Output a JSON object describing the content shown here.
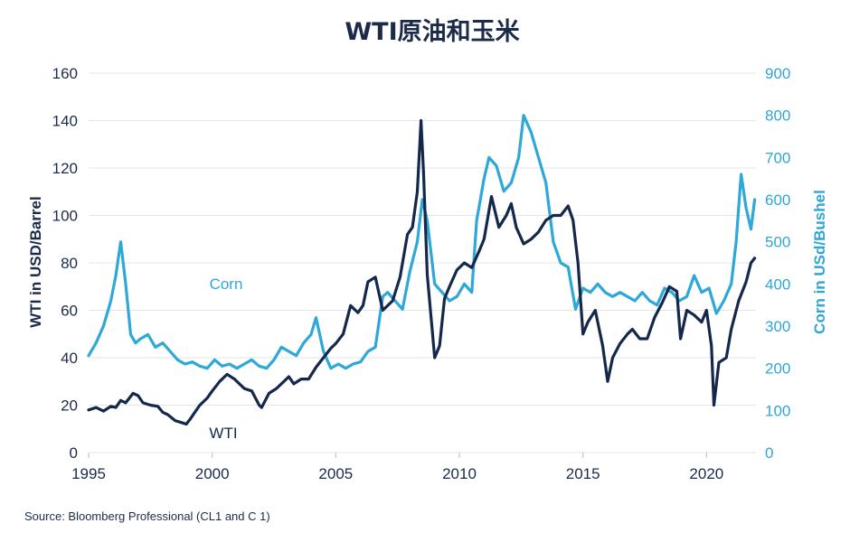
{
  "chart_data": {
    "type": "line",
    "title": "WTI原油和玉米",
    "ylabel_left": "WTI in USD/Barrel",
    "ylabel_right": "Corn in USd/Bushel",
    "source": "Source: Bloomberg Professional  (CL1 and C 1)",
    "xlim": [
      1995,
      2022
    ],
    "ylim_left": [
      0,
      160
    ],
    "ylim_right": [
      0,
      900
    ],
    "x_ticks": [
      1995,
      2000,
      2005,
      2010,
      2015,
      2020
    ],
    "y_ticks_left": [
      0,
      20,
      40,
      60,
      80,
      100,
      120,
      140,
      160
    ],
    "y_ticks_right": [
      0,
      100,
      200,
      300,
      400,
      500,
      600,
      700,
      800,
      900
    ],
    "grid": "horizontal",
    "colors": {
      "wti": "#14284b",
      "corn": "#2ea8d8",
      "text": "#1c2b4a"
    },
    "series": [
      {
        "name": "WTI",
        "axis": "left",
        "x": [
          1995.0,
          1995.3,
          1995.6,
          1995.9,
          1996.1,
          1996.3,
          1996.5,
          1996.8,
          1997.0,
          1997.2,
          1997.5,
          1997.8,
          1998.0,
          1998.2,
          1998.5,
          1998.8,
          1998.95,
          1999.1,
          1999.3,
          1999.5,
          1999.8,
          2000.0,
          2000.3,
          2000.6,
          2000.9,
          2001.1,
          2001.3,
          2001.6,
          2001.9,
          2002.0,
          2002.3,
          2002.6,
          2002.9,
          2003.1,
          2003.3,
          2003.6,
          2003.9,
          2004.2,
          2004.5,
          2004.8,
          2005.0,
          2005.3,
          2005.6,
          2005.9,
          2006.1,
          2006.3,
          2006.6,
          2006.9,
          2007.0,
          2007.3,
          2007.6,
          2007.9,
          2008.1,
          2008.3,
          2008.45,
          2008.55,
          2008.7,
          2008.9,
          2009.0,
          2009.2,
          2009.4,
          2009.6,
          2009.9,
          2010.2,
          2010.5,
          2010.8,
          2011.0,
          2011.3,
          2011.6,
          2011.9,
          2012.1,
          2012.3,
          2012.6,
          2012.9,
          2013.2,
          2013.5,
          2013.8,
          2014.1,
          2014.4,
          2014.6,
          2014.8,
          2015.0,
          2015.2,
          2015.5,
          2015.8,
          2016.0,
          2016.2,
          2016.5,
          2016.8,
          2017.0,
          2017.3,
          2017.6,
          2017.9,
          2018.2,
          2018.5,
          2018.8,
          2018.95,
          2019.2,
          2019.5,
          2019.8,
          2020.0,
          2020.2,
          2020.3,
          2020.5,
          2020.8,
          2021.0,
          2021.3,
          2021.6,
          2021.8,
          2021.95
        ],
        "values": [
          18,
          19,
          17.5,
          19.5,
          19,
          22,
          21,
          25,
          24,
          21,
          20,
          19.5,
          17,
          16,
          13.5,
          12.5,
          12,
          14,
          17,
          20,
          23,
          26,
          30,
          33,
          31,
          29,
          27,
          26,
          20,
          19,
          25,
          27,
          30,
          32,
          29,
          31,
          31,
          36,
          40,
          44,
          46,
          50,
          62,
          59,
          62,
          72,
          74,
          60,
          61,
          64,
          74,
          92,
          95,
          110,
          140,
          118,
          75,
          52,
          40,
          45,
          65,
          70,
          77,
          80,
          78,
          85,
          90,
          108,
          95,
          100,
          105,
          95,
          88,
          90,
          93,
          98,
          100,
          100,
          104,
          98,
          80,
          50,
          55,
          60,
          45,
          30,
          40,
          46,
          50,
          52,
          48,
          48,
          57,
          63,
          70,
          68,
          48,
          60,
          58,
          55,
          60,
          45,
          20,
          38,
          40,
          52,
          64,
          72,
          80,
          82
        ]
      },
      {
        "name": "Corn",
        "axis": "right",
        "x": [
          1995.0,
          1995.3,
          1995.6,
          1995.9,
          1996.1,
          1996.3,
          1996.5,
          1996.7,
          1996.9,
          1997.1,
          1997.4,
          1997.7,
          1998.0,
          1998.3,
          1998.6,
          1998.9,
          1999.2,
          1999.5,
          1999.8,
          2000.1,
          2000.4,
          2000.7,
          2001.0,
          2001.3,
          2001.6,
          2001.9,
          2002.2,
          2002.5,
          2002.8,
          2003.1,
          2003.4,
          2003.7,
          2004.0,
          2004.2,
          2004.5,
          2004.8,
          2005.1,
          2005.4,
          2005.7,
          2006.0,
          2006.3,
          2006.6,
          2006.9,
          2007.1,
          2007.4,
          2007.7,
          2008.0,
          2008.3,
          2008.5,
          2008.7,
          2009.0,
          2009.3,
          2009.6,
          2009.9,
          2010.2,
          2010.5,
          2010.7,
          2011.0,
          2011.2,
          2011.5,
          2011.8,
          2012.1,
          2012.4,
          2012.6,
          2012.9,
          2013.2,
          2013.5,
          2013.8,
          2014.1,
          2014.4,
          2014.7,
          2015.0,
          2015.3,
          2015.6,
          2015.9,
          2016.2,
          2016.5,
          2016.8,
          2017.1,
          2017.4,
          2017.7,
          2018.0,
          2018.3,
          2018.6,
          2018.9,
          2019.2,
          2019.5,
          2019.8,
          2020.1,
          2020.4,
          2020.7,
          2021.0,
          2021.2,
          2021.4,
          2021.6,
          2021.8,
          2021.95
        ],
        "values": [
          230,
          260,
          300,
          360,
          420,
          500,
          400,
          280,
          260,
          270,
          280,
          250,
          260,
          240,
          220,
          210,
          215,
          205,
          200,
          220,
          205,
          210,
          200,
          210,
          220,
          205,
          200,
          220,
          250,
          240,
          230,
          260,
          280,
          320,
          240,
          200,
          210,
          200,
          210,
          215,
          240,
          250,
          370,
          380,
          360,
          340,
          430,
          500,
          600,
          550,
          400,
          380,
          360,
          370,
          400,
          380,
          550,
          650,
          700,
          680,
          620,
          640,
          700,
          800,
          760,
          700,
          640,
          500,
          450,
          440,
          340,
          390,
          380,
          400,
          380,
          370,
          380,
          370,
          360,
          380,
          360,
          350,
          390,
          380,
          360,
          370,
          420,
          380,
          390,
          330,
          360,
          400,
          500,
          660,
          580,
          530,
          600
        ]
      }
    ],
    "annotations": [
      {
        "text": "Corn",
        "series": "Corn"
      },
      {
        "text": "WTI",
        "series": "WTI"
      }
    ]
  }
}
